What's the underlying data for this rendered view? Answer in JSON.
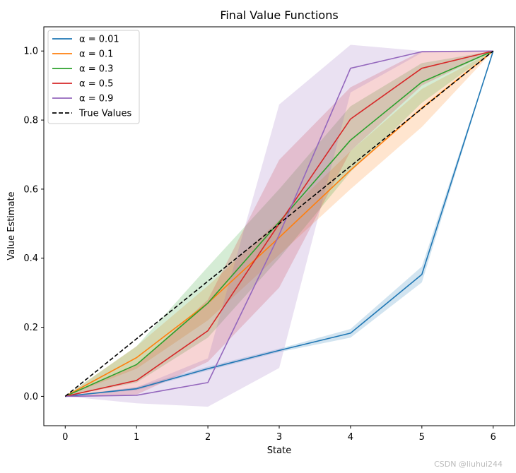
{
  "watermark": "CSDN @liuhui244",
  "chart_data": {
    "type": "line",
    "title": "Final Value Functions",
    "xlabel": "State",
    "ylabel": "Value Estimate",
    "x": [
      0,
      1,
      2,
      3,
      4,
      5,
      6
    ],
    "xticks": [
      0,
      1,
      2,
      3,
      4,
      5,
      6
    ],
    "xtick_labels": [
      "0",
      "1",
      "2",
      "3",
      "4",
      "5",
      "6"
    ],
    "yticks": [
      0.0,
      0.2,
      0.4,
      0.6,
      0.8,
      1.0
    ],
    "ytick_labels": [
      "0.0",
      "0.2",
      "0.4",
      "0.6",
      "0.8",
      "1.0"
    ],
    "xlim": [
      -0.3,
      6.3
    ],
    "ylim": [
      -0.085,
      1.07
    ],
    "grid": false,
    "legend_position": "top-left",
    "series": [
      {
        "name": "α = 0.01",
        "color": "#1f77b4",
        "values": [
          0.0,
          0.022,
          0.08,
          0.133,
          0.183,
          0.353,
          1.0
        ],
        "lower": [
          0.0,
          0.018,
          0.075,
          0.128,
          0.17,
          0.33,
          1.0
        ],
        "upper": [
          0.0,
          0.027,
          0.086,
          0.138,
          0.195,
          0.376,
          1.0
        ]
      },
      {
        "name": "α = 0.1",
        "color": "#ff7f0e",
        "values": [
          0.0,
          0.112,
          0.27,
          0.46,
          0.655,
          0.835,
          1.0
        ],
        "lower": [
          0.0,
          0.08,
          0.22,
          0.41,
          0.6,
          0.78,
          1.0
        ],
        "upper": [
          0.0,
          0.145,
          0.32,
          0.51,
          0.71,
          0.89,
          1.0
        ]
      },
      {
        "name": "α = 0.3",
        "color": "#2ca02c",
        "values": [
          0.0,
          0.092,
          0.27,
          0.505,
          0.742,
          0.91,
          1.0
        ],
        "lower": [
          0.0,
          0.04,
          0.17,
          0.4,
          0.65,
          0.85,
          1.0
        ],
        "upper": [
          0.0,
          0.145,
          0.375,
          0.6,
          0.84,
          0.965,
          1.0
        ]
      },
      {
        "name": "α = 0.5",
        "color": "#d62728",
        "values": [
          0.0,
          0.046,
          0.19,
          0.5,
          0.803,
          0.95,
          1.0
        ],
        "lower": [
          0.0,
          0.005,
          0.1,
          0.315,
          0.71,
          0.9,
          1.0
        ],
        "upper": [
          0.0,
          0.09,
          0.28,
          0.685,
          0.895,
          1.0,
          1.0
        ]
      },
      {
        "name": "α = 0.9",
        "color": "#9467bd",
        "values": [
          0.0,
          0.003,
          0.04,
          0.468,
          0.95,
          0.998,
          1.0
        ],
        "lower": [
          0.0,
          -0.02,
          -0.03,
          0.082,
          0.88,
          0.995,
          1.0
        ],
        "upper": [
          0.0,
          0.026,
          0.11,
          0.845,
          1.018,
          1.0,
          1.0
        ]
      },
      {
        "name": "True Values",
        "color": "#000000",
        "dashed": true,
        "values": [
          0.0,
          0.1667,
          0.3333,
          0.5,
          0.6667,
          0.8333,
          1.0
        ]
      }
    ]
  }
}
